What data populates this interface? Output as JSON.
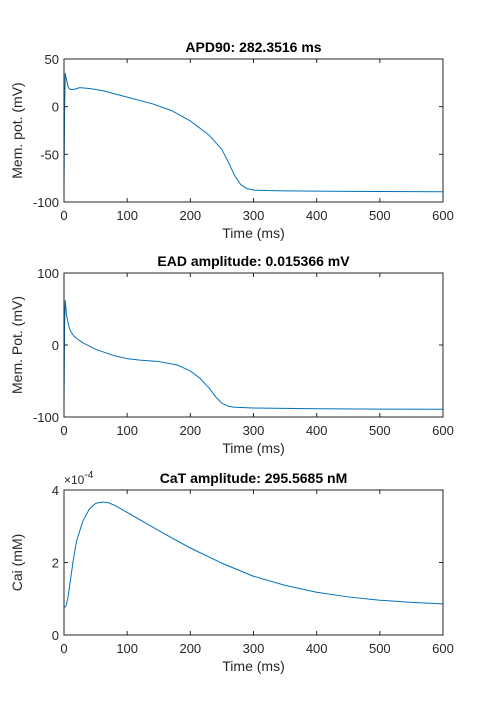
{
  "figure": {
    "background": "#ffffff",
    "axis_color": "#262626",
    "line_color": "#0072bd"
  },
  "chart_data": [
    {
      "type": "line",
      "title": "APD90: 282.3516 ms",
      "xlabel": "Time (ms)",
      "ylabel": "Mem. pot. (mV)",
      "xlim": [
        0,
        600
      ],
      "ylim": [
        -100,
        50
      ],
      "xticks": [
        "0",
        "100",
        "200",
        "300",
        "400",
        "500",
        "600"
      ],
      "yticks": [
        "-100",
        "-50",
        "0",
        "50"
      ],
      "xtick_values": [
        0,
        100,
        200,
        300,
        400,
        500,
        600
      ],
      "ytick_values": [
        -100,
        -50,
        0,
        50
      ],
      "grid": false,
      "series": [
        {
          "color": "#0072bd",
          "x": [
            0,
            1,
            2,
            4,
            7,
            10,
            15,
            25,
            40,
            60,
            100,
            140,
            170,
            200,
            230,
            250,
            260,
            270,
            280,
            290,
            300,
            320,
            350,
            400,
            450,
            500,
            550,
            600
          ],
          "y": [
            -88,
            0,
            35,
            28,
            20,
            18,
            18,
            20,
            19,
            17,
            10,
            3,
            -4,
            -15,
            -30,
            -45,
            -58,
            -72,
            -82,
            -86,
            -87.5,
            -88,
            -88.3,
            -88.6,
            -88.8,
            -89,
            -89.1,
            -89.2
          ]
        }
      ]
    },
    {
      "type": "line",
      "title": "EAD amplitude: 0.015366 mV",
      "xlabel": "Time (ms)",
      "ylabel": "Mem. Pot. (mV)",
      "xlim": [
        0,
        600
      ],
      "ylim": [
        -100,
        100
      ],
      "xticks": [
        "0",
        "100",
        "200",
        "300",
        "400",
        "500",
        "600"
      ],
      "yticks": [
        "-100",
        "0",
        "100"
      ],
      "xtick_values": [
        0,
        100,
        200,
        300,
        400,
        500,
        600
      ],
      "ytick_values": [
        -100,
        0,
        100
      ],
      "grid": false,
      "series": [
        {
          "color": "#0072bd",
          "x": [
            0,
            1,
            2,
            4,
            7,
            10,
            15,
            20,
            30,
            50,
            80,
            100,
            120,
            150,
            180,
            200,
            215,
            230,
            240,
            250,
            260,
            270,
            300,
            350,
            400,
            500,
            600
          ],
          "y": [
            -88,
            30,
            62,
            42,
            28,
            20,
            13,
            9,
            3,
            -6,
            -15,
            -19,
            -21,
            -23,
            -28,
            -36,
            -46,
            -60,
            -72,
            -81,
            -85,
            -86.5,
            -87.5,
            -88,
            -88.5,
            -89,
            -89.3
          ]
        }
      ]
    },
    {
      "type": "line",
      "title": "CaT amplitude: 295.5685 nM",
      "xlabel": "Time (ms)",
      "ylabel": "Cai (mM)",
      "exponent_label": "×10",
      "exponent_power": "-4",
      "xlim": [
        0,
        600
      ],
      "ylim": [
        0,
        4
      ],
      "xticks": [
        "0",
        "100",
        "200",
        "300",
        "400",
        "500",
        "600"
      ],
      "yticks": [
        "0",
        "2",
        "4"
      ],
      "xtick_values": [
        0,
        100,
        200,
        300,
        400,
        500,
        600
      ],
      "ytick_values": [
        0,
        2,
        4
      ],
      "grid": false,
      "series": [
        {
          "color": "#0072bd",
          "x": [
            0,
            3,
            6,
            10,
            15,
            20,
            30,
            40,
            50,
            60,
            70,
            80,
            100,
            130,
            160,
            200,
            250,
            300,
            350,
            400,
            450,
            500,
            550,
            600
          ],
          "y": [
            0.75,
            0.8,
            1.0,
            1.5,
            2.1,
            2.6,
            3.15,
            3.47,
            3.63,
            3.67,
            3.65,
            3.58,
            3.38,
            3.08,
            2.78,
            2.4,
            1.98,
            1.62,
            1.37,
            1.18,
            1.05,
            0.96,
            0.9,
            0.86
          ]
        }
      ]
    }
  ]
}
